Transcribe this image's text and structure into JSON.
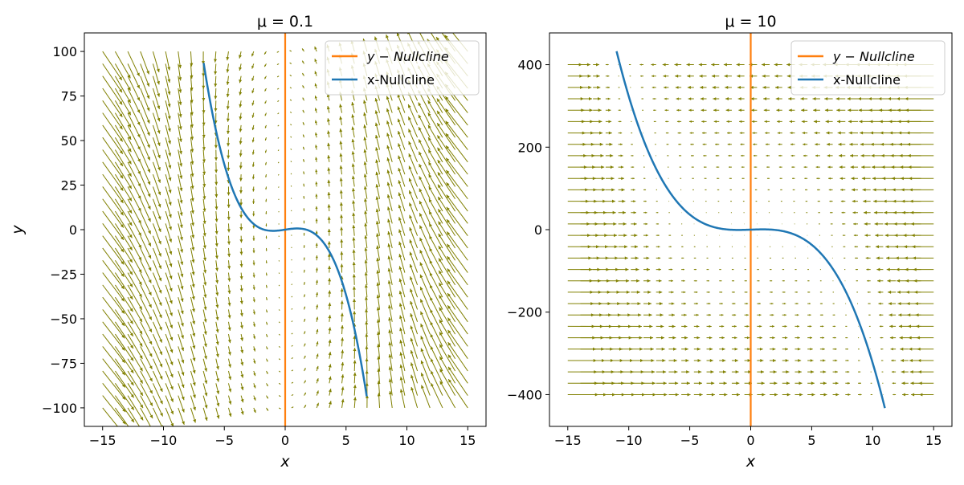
{
  "chart_data": [
    {
      "type": "quiver",
      "title": "μ = 0.1",
      "mu": 0.1,
      "xlabel": "x",
      "ylabel": "y",
      "xlim": [
        -16.5,
        16.5
      ],
      "ylim": [
        -110.4,
        110.4
      ],
      "xticks": [
        -15,
        -10,
        -5,
        0,
        5,
        10,
        15
      ],
      "yticks": [
        -100,
        -75,
        -50,
        -25,
        0,
        25,
        50,
        75,
        100
      ],
      "xtick_labels": [
        "−15",
        "−10",
        "−5",
        "0",
        "5",
        "10",
        "15"
      ],
      "ytick_labels": [
        "−100",
        "−75",
        "−50",
        "−25",
        "0",
        "25",
        "50",
        "75",
        "100"
      ],
      "quiver": {
        "x_range": [
          -15,
          15
        ],
        "nx": 30,
        "y_range": [
          -100,
          100
        ],
        "ny": 30,
        "color": "#808000"
      },
      "series": [
        {
          "name": "y − Nullcline",
          "kind": "vline",
          "x": 0,
          "color": "#ff7f0e"
        },
        {
          "name": "x-Nullcline",
          "kind": "curve",
          "equation": "y = x - x^3/3",
          "x_range": [
            -6.7,
            6.7
          ],
          "color": "#1f77b4"
        }
      ],
      "legend": "upper right"
    },
    {
      "type": "quiver",
      "title": "μ = 10",
      "mu": 10,
      "xlabel": "x",
      "ylabel": "",
      "xlim": [
        -16.5,
        16.5
      ],
      "ylim": [
        -477,
        477
      ],
      "xticks": [
        -15,
        -10,
        -5,
        0,
        5,
        10,
        15
      ],
      "yticks": [
        -400,
        -200,
        0,
        200,
        400
      ],
      "xtick_labels": [
        "−15",
        "−10",
        "−5",
        "0",
        "5",
        "10",
        "15"
      ],
      "ytick_labels": [
        "−400",
        "−200",
        "0",
        "200",
        "400"
      ],
      "quiver": {
        "x_range": [
          -15,
          15
        ],
        "nx": 30,
        "y_range": [
          -400,
          400
        ],
        "ny": 30,
        "color": "#808000"
      },
      "series": [
        {
          "name": "y − Nullcline",
          "kind": "vline",
          "x": 0,
          "color": "#ff7f0e"
        },
        {
          "name": "x-Nullcline",
          "kind": "curve",
          "equation": "y = x - x^3/3",
          "x_range": [
            -11,
            11
          ],
          "color": "#1f77b4"
        }
      ],
      "legend": "upper right"
    }
  ]
}
